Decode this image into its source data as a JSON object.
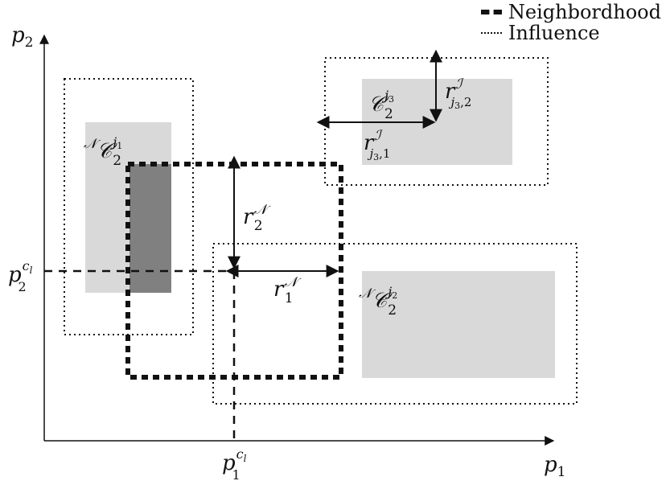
{
  "legend": {
    "neighborhood_label": "Neighbordhood",
    "influence_label": "Influence"
  },
  "axes": {
    "x_label_base": "p",
    "x_label_sub": "1",
    "y_label_base": "p",
    "y_label_sub": "2"
  },
  "cell": {
    "x_tick_base": "p",
    "x_tick_sub": "1",
    "x_tick_sup": "c",
    "x_tick_sup_sub": "l",
    "y_tick_base": "p",
    "y_tick_sub": "2",
    "y_tick_sup": "c",
    "y_tick_sup_sub": "l"
  },
  "neighborhood_radius": {
    "r1_base": "r",
    "r1_sub": "1",
    "r1_sup": "𝒩",
    "r2_base": "r",
    "r2_sub": "2",
    "r2_sup": "𝒩"
  },
  "influence_radius": {
    "r1_base": "r",
    "r1_sup": "ℐ",
    "r1_sub_j": "j",
    "r1_sub_j_sub": "3",
    "r1_sub_idx": ",1",
    "r2_base": "r",
    "r2_sup": "ℐ",
    "r2_sub_j": "j",
    "r2_sub_j_sub": "3",
    "r2_sub_idx": ",2"
  },
  "regions": {
    "j1": {
      "pre_sup": "𝒩",
      "base": "𝒞",
      "sub": "2",
      "sup_j": "j",
      "sup_j_sub": "1"
    },
    "j2": {
      "pre_sup": "𝒩",
      "base": "𝒞",
      "sub": "2",
      "sup_j": "j",
      "sup_j_sub": "2"
    },
    "j3": {
      "pre_sup": "",
      "base": "𝒞",
      "sub": "2",
      "sup_j": "j",
      "sup_j_sub": "3"
    }
  },
  "colors": {
    "light_region": "#d9d9d9",
    "overlap_region": "#808080",
    "ink": "#111111"
  }
}
